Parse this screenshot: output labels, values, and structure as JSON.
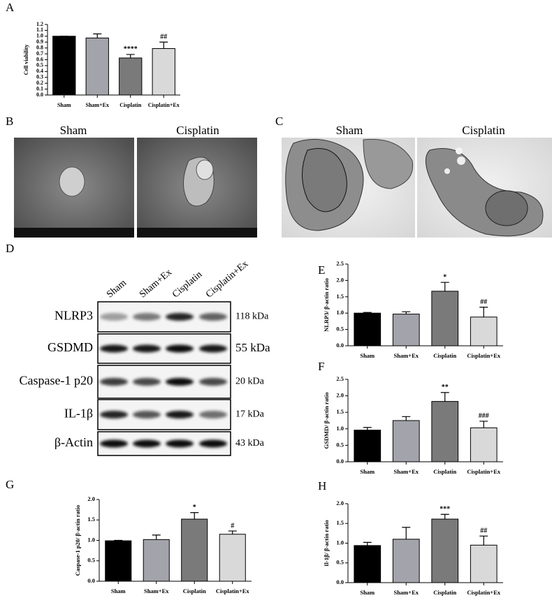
{
  "chart_data": [
    {
      "type": "bar",
      "panel": "A",
      "ylabel": "Cell viability",
      "categories": [
        "Sham",
        "Sham+Ex",
        "Cisplatin",
        "Cisplatin+Ex"
      ],
      "values": [
        1.0,
        0.97,
        0.63,
        0.79
      ],
      "errors": [
        0,
        0.07,
        0.06,
        0.11
      ],
      "annotations": [
        null,
        null,
        "****",
        "##"
      ],
      "colors": [
        "#000000",
        "#a3a3ab",
        "#7a7a7a",
        "#d9d9d9"
      ],
      "ylim": [
        0,
        1.2
      ],
      "yticks": [
        {
          "value": 0,
          "label": "0.0"
        },
        {
          "value": 0.1,
          "label": "0.1"
        },
        {
          "value": 0.2,
          "label": "0.2"
        },
        {
          "value": 0.3,
          "label": "0.3"
        },
        {
          "value": 0.4,
          "label": "0.4"
        },
        {
          "value": 0.5,
          "label": "0.5"
        },
        {
          "value": 0.6,
          "label": "0.6"
        },
        {
          "value": 0.7,
          "label": "0.7"
        },
        {
          "value": 0.8,
          "label": "0.8"
        },
        {
          "value": 0.9,
          "label": "0.9"
        },
        {
          "value": 1,
          "label": "1.0"
        },
        {
          "value": 1.1,
          "label": "1.1"
        },
        {
          "value": 1.2,
          "label": "1.2"
        }
      ]
    },
    {
      "type": "bar",
      "panel": "E",
      "ylabel": "NLRP3/ β-actin ratio",
      "categories": [
        "Sham",
        "Sham+Ex",
        "Cisplatin",
        "Cisplatin+Ex"
      ],
      "values": [
        1.0,
        0.97,
        1.67,
        0.88
      ],
      "errors": [
        0.02,
        0.07,
        0.27,
        0.3
      ],
      "annotations": [
        null,
        null,
        "*",
        "##"
      ],
      "colors": [
        "#000000",
        "#a3a3ab",
        "#7a7a7a",
        "#d9d9d9"
      ],
      "ylim": [
        0,
        2.5
      ],
      "yticks": [
        {
          "value": 0,
          "label": "0.0"
        },
        {
          "value": 0.5,
          "label": "0.5"
        },
        {
          "value": 1,
          "label": "1.0"
        },
        {
          "value": 1.5,
          "label": "1.5"
        },
        {
          "value": 2,
          "label": "2.0"
        },
        {
          "value": 2.5,
          "label": "2.5"
        }
      ]
    },
    {
      "type": "bar",
      "panel": "F",
      "ylabel": "GSDMD/ β-actin ratio",
      "categories": [
        "Sham",
        "Sham+Ex",
        "Cisplatin",
        "Cisplatin+Ex"
      ],
      "values": [
        0.96,
        1.25,
        1.83,
        1.03
      ],
      "errors": [
        0.08,
        0.12,
        0.27,
        0.2
      ],
      "annotations": [
        null,
        null,
        "**",
        "###"
      ],
      "colors": [
        "#000000",
        "#a3a3ab",
        "#7a7a7a",
        "#d9d9d9"
      ],
      "ylim": [
        0,
        2.5
      ],
      "yticks": [
        {
          "value": 0,
          "label": "0.0"
        },
        {
          "value": 0.5,
          "label": "0.5"
        },
        {
          "value": 1,
          "label": "1.0"
        },
        {
          "value": 1.5,
          "label": "1.5"
        },
        {
          "value": 2,
          "label": "2.0"
        },
        {
          "value": 2.5,
          "label": "2.5"
        }
      ]
    },
    {
      "type": "bar",
      "panel": "G",
      "ylabel": "Caspase-1 p20/ β-actin ratio",
      "categories": [
        "Sham",
        "Sham+Ex",
        "Cisplatin",
        "Cisplatin+Ex"
      ],
      "values": [
        0.99,
        1.02,
        1.52,
        1.15
      ],
      "errors": [
        0.01,
        0.11,
        0.16,
        0.08
      ],
      "annotations": [
        null,
        null,
        "*",
        "#"
      ],
      "colors": [
        "#000000",
        "#a3a3ab",
        "#7a7a7a",
        "#d9d9d9"
      ],
      "ylim": [
        0,
        2.0
      ],
      "yticks": [
        {
          "value": 0,
          "label": "0.0"
        },
        {
          "value": 0.5,
          "label": "0.5"
        },
        {
          "value": 1,
          "label": "1.0"
        },
        {
          "value": 1.5,
          "label": "1.5"
        },
        {
          "value": 2,
          "label": "2.0"
        }
      ]
    },
    {
      "type": "bar",
      "panel": "H",
      "ylabel": "Il-1β/ β-actin ratio",
      "categories": [
        "Sham",
        "Sham+Ex",
        "Cisplatin",
        "Cisplatin+Ex"
      ],
      "values": [
        0.94,
        1.1,
        1.61,
        0.95
      ],
      "errors": [
        0.08,
        0.3,
        0.12,
        0.23
      ],
      "annotations": [
        null,
        null,
        "***",
        "##"
      ],
      "colors": [
        "#000000",
        "#a3a3ab",
        "#7a7a7a",
        "#d9d9d9"
      ],
      "ylim": [
        0,
        2.0
      ],
      "yticks": [
        {
          "value": 0,
          "label": "0.0"
        },
        {
          "value": 0.5,
          "label": "0.5"
        },
        {
          "value": 1,
          "label": "1.0"
        },
        {
          "value": 1.5,
          "label": "1.5"
        },
        {
          "value": 2,
          "label": "2.0"
        }
      ]
    }
  ],
  "micrographs": [
    {
      "panel": "B",
      "titles": [
        "Sham",
        "Cisplatin"
      ]
    },
    {
      "panel": "C",
      "titles": [
        "Sham",
        "Cisplatin"
      ]
    }
  ],
  "blot": {
    "panel": "D",
    "columns": [
      "Sham",
      "Sham+Ex",
      "Cisplatin",
      "Cisplatin+Ex"
    ],
    "rows": [
      {
        "protein": "NLRP3",
        "size": "118 kDa"
      },
      {
        "protein": "GSDMD",
        "size": "55 kDa"
      },
      {
        "protein": "Caspase-1 p20",
        "size": "20 kDa"
      },
      {
        "protein": "IL-1β",
        "size": "17 kDa"
      },
      {
        "protein": "β-Actin",
        "size": "43 kDa"
      }
    ]
  }
}
